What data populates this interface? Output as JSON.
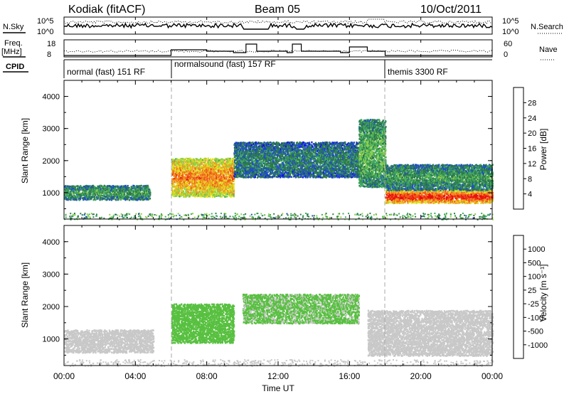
{
  "header": {
    "station": "Kodiak (fitACF)",
    "beam": "Beam 05",
    "date": "10/Oct/2011"
  },
  "strip_labels": {
    "nsky": "N.Sky",
    "nsearch": "N.Search",
    "freq": "Freq.",
    "freq_unit": "[MHz]",
    "nave": "Nave",
    "cpid": "CPID",
    "nsky_ticks": [
      "10^5",
      "10^0"
    ],
    "nsearch_ticks": [
      "10^5",
      "10^0"
    ],
    "freq_ticks": [
      "18",
      "8"
    ],
    "nave_ticks": [
      "60",
      "0"
    ]
  },
  "cpid_segments": [
    {
      "label": "normal (fast) 151 RF",
      "start_h": 0,
      "end_h": 6
    },
    {
      "label": "normalsound (fast) 157 RF",
      "start_h": 6,
      "end_h": 18
    },
    {
      "label": "themis 3300 RF",
      "start_h": 18,
      "end_h": 24
    }
  ],
  "xaxis": {
    "label": "Time UT",
    "ticks": [
      "00:00",
      "04:00",
      "08:00",
      "12:00",
      "16:00",
      "20:00",
      "00:00"
    ],
    "range_h": [
      0,
      24
    ]
  },
  "chart_data": [
    {
      "type": "heatmap",
      "title": "",
      "xlabel": "Time UT",
      "ylabel": "Slant Range [km]",
      "ylim": [
        180,
        4500
      ],
      "yticks": [
        "1000",
        "2000",
        "3000",
        "4000"
      ],
      "colorbar": {
        "label": "Power [dB]",
        "ticks": [
          "28",
          "24",
          "20",
          "16",
          "12",
          "8",
          "4"
        ],
        "range": [
          0,
          30
        ],
        "colors": [
          "#1010ee",
          "#2050c0",
          "#2d7a4a",
          "#3fa860",
          "#8ad04a",
          "#e0e020",
          "#f09a20",
          "#f05a18",
          "#e81010"
        ]
      },
      "echo_regions": [
        {
          "name": "early-band",
          "t": [
            0.0,
            4.8
          ],
          "r": [
            800,
            1250
          ],
          "power": 10
        },
        {
          "name": "morning-patch",
          "t": [
            6.0,
            9.5
          ],
          "r": [
            900,
            2100
          ],
          "power": 22
        },
        {
          "name": "midday-irregular",
          "t": [
            9.5,
            16.5
          ],
          "r": [
            1500,
            2600
          ],
          "power": 8
        },
        {
          "name": "afternoon-rise",
          "t": [
            16.5,
            18.0
          ],
          "r": [
            1200,
            3300
          ],
          "power": 12
        },
        {
          "name": "evening-band",
          "t": [
            18.0,
            24.0
          ],
          "r": [
            700,
            1100
          ],
          "power": 26
        },
        {
          "name": "evening-upper",
          "t": [
            18.0,
            24.0
          ],
          "r": [
            1100,
            1900
          ],
          "power": 10
        }
      ]
    },
    {
      "type": "heatmap",
      "title": "",
      "xlabel": "Time UT",
      "ylabel": "Slant Range [km]",
      "ylim": [
        180,
        4500
      ],
      "yticks": [
        "1000",
        "2000",
        "3000",
        "4000"
      ],
      "colorbar": {
        "label": "Velocity [m s⁻¹]",
        "ticks": [
          "1000",
          "500",
          "100",
          "25",
          "-25",
          "-100",
          "-500",
          "-1000"
        ],
        "range": [
          -1000,
          1000
        ],
        "colors": [
          "#1e3ca8",
          "#2f66c8",
          "#2d8a4a",
          "#58c040",
          "#c8c8c8",
          "#f8d020",
          "#f09020",
          "#f05a18",
          "#e81010"
        ]
      },
      "echo_regions": [
        {
          "name": "early-ground",
          "t": [
            0.0,
            5.0
          ],
          "r": [
            600,
            1300
          ],
          "velocity": 0
        },
        {
          "name": "morning-flow",
          "t": [
            6.0,
            9.5
          ],
          "r": [
            900,
            2100
          ],
          "velocity": -200
        },
        {
          "name": "midday-flow",
          "t": [
            10.0,
            16.5
          ],
          "r": [
            1500,
            2400
          ],
          "velocity": -150
        },
        {
          "name": "evening-ground",
          "t": [
            17.0,
            24.0
          ],
          "r": [
            500,
            1900
          ],
          "velocity": 0
        }
      ]
    }
  ]
}
